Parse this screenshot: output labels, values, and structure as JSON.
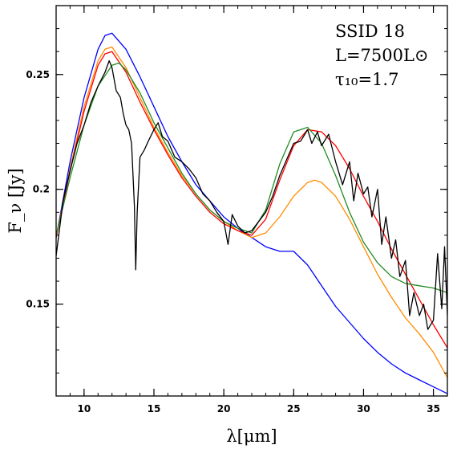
{
  "chart_data": {
    "type": "line",
    "title": "",
    "xlabel": "λ[μm]",
    "ylabel": "F_ν [Jy]",
    "xlim": [
      8,
      36
    ],
    "ylim": [
      0.11,
      0.28
    ],
    "x_ticks": [
      10,
      15,
      20,
      25,
      30,
      35
    ],
    "x_tick_labels": [
      "10",
      "15",
      "20",
      "25",
      "30",
      "35"
    ],
    "y_ticks": [
      0.15,
      0.2,
      0.25
    ],
    "y_tick_labels": [
      "0.15",
      "0.2",
      "0.25"
    ],
    "grid": false,
    "legend": "none",
    "annotation": {
      "line1": "SSID 18",
      "line2": "L=7500L⊙",
      "line3": "τ₁₀=1.7"
    },
    "series": [
      {
        "color": "#0000ff",
        "x": [
          8,
          9,
          10,
          11,
          11.5,
          12,
          13,
          14,
          15,
          16,
          17,
          18,
          19,
          20,
          21,
          22,
          23,
          24,
          25,
          26,
          27,
          28,
          29,
          30,
          31,
          32,
          33,
          34,
          35,
          36
        ],
        "y": [
          0.179,
          0.212,
          0.24,
          0.261,
          0.267,
          0.268,
          0.261,
          0.249,
          0.236,
          0.223,
          0.212,
          0.202,
          0.195,
          0.188,
          0.183,
          0.179,
          0.175,
          0.173,
          0.173,
          0.167,
          0.158,
          0.149,
          0.142,
          0.135,
          0.129,
          0.124,
          0.12,
          0.117,
          0.114,
          0.111
        ]
      },
      {
        "color": "#ff8c00",
        "x": [
          8,
          9,
          10,
          11,
          11.5,
          12,
          13,
          14,
          15,
          16,
          17,
          18,
          19,
          20,
          21,
          22,
          23,
          24,
          25,
          26,
          26.5,
          27,
          28,
          29,
          30,
          31,
          32,
          33,
          34,
          35,
          36
        ],
        "y": [
          0.179,
          0.209,
          0.236,
          0.256,
          0.261,
          0.262,
          0.253,
          0.24,
          0.227,
          0.216,
          0.206,
          0.198,
          0.191,
          0.186,
          0.182,
          0.179,
          0.181,
          0.188,
          0.197,
          0.203,
          0.204,
          0.203,
          0.197,
          0.187,
          0.175,
          0.163,
          0.153,
          0.144,
          0.137,
          0.129,
          0.118
        ]
      },
      {
        "color": "#ff0000",
        "x": [
          8,
          9,
          10,
          11,
          11.5,
          12,
          13,
          14,
          15,
          16,
          17,
          18,
          19,
          20,
          21,
          22,
          23,
          24,
          25,
          26,
          27,
          28,
          29,
          30,
          31,
          32,
          33,
          34,
          35,
          36
        ],
        "y": [
          0.179,
          0.208,
          0.234,
          0.254,
          0.259,
          0.26,
          0.251,
          0.238,
          0.226,
          0.215,
          0.205,
          0.197,
          0.19,
          0.185,
          0.182,
          0.18,
          0.187,
          0.204,
          0.219,
          0.226,
          0.225,
          0.219,
          0.209,
          0.197,
          0.186,
          0.174,
          0.163,
          0.152,
          0.141,
          0.131
        ]
      },
      {
        "color": "#228b22",
        "x": [
          8,
          9,
          10,
          11,
          12,
          12.5,
          13,
          14,
          15,
          16,
          17,
          18,
          19,
          20,
          21,
          22,
          23,
          24,
          25,
          26,
          27,
          28,
          29,
          30,
          31,
          32,
          33,
          34,
          35,
          36
        ],
        "y": [
          0.18,
          0.205,
          0.228,
          0.245,
          0.254,
          0.255,
          0.252,
          0.242,
          0.229,
          0.218,
          0.207,
          0.198,
          0.191,
          0.186,
          0.183,
          0.181,
          0.191,
          0.211,
          0.225,
          0.227,
          0.22,
          0.206,
          0.19,
          0.177,
          0.168,
          0.162,
          0.159,
          0.158,
          0.157,
          0.155
        ]
      },
      {
        "color": "#000000",
        "x": [
          8,
          8.5,
          9,
          9.5,
          10,
          10.5,
          11,
          11.5,
          11.8,
          12,
          12.3,
          12.6,
          12.8,
          13,
          13.2,
          13.4,
          13.6,
          13.7,
          13.8,
          14,
          14.3,
          14.6,
          15,
          15.3,
          15.6,
          16,
          16.5,
          17,
          17.5,
          18,
          18.5,
          19,
          19.5,
          20,
          20.3,
          20.6,
          21,
          21.5,
          22,
          22.5,
          23,
          23.5,
          24,
          24.5,
          25,
          25.5,
          26,
          26.3,
          26.7,
          27,
          27.5,
          28,
          28.5,
          29,
          29.3,
          29.6,
          30,
          30.3,
          30.6,
          31,
          31.3,
          31.6,
          32,
          32.3,
          32.6,
          33,
          33.3,
          33.6,
          34,
          34.3,
          34.6,
          35,
          35.3,
          35.6,
          35.8,
          36
        ],
        "y": [
          0.171,
          0.195,
          0.208,
          0.22,
          0.228,
          0.238,
          0.245,
          0.251,
          0.256,
          0.253,
          0.243,
          0.24,
          0.233,
          0.228,
          0.226,
          0.22,
          0.193,
          0.165,
          0.19,
          0.214,
          0.217,
          0.221,
          0.226,
          0.229,
          0.223,
          0.221,
          0.214,
          0.212,
          0.209,
          0.205,
          0.198,
          0.195,
          0.19,
          0.186,
          0.176,
          0.189,
          0.184,
          0.181,
          0.182,
          0.186,
          0.19,
          0.197,
          0.206,
          0.213,
          0.22,
          0.221,
          0.226,
          0.22,
          0.225,
          0.219,
          0.224,
          0.212,
          0.202,
          0.212,
          0.195,
          0.207,
          0.198,
          0.201,
          0.188,
          0.2,
          0.176,
          0.188,
          0.17,
          0.178,
          0.162,
          0.169,
          0.145,
          0.155,
          0.145,
          0.15,
          0.139,
          0.143,
          0.172,
          0.148,
          0.175,
          0.145
        ]
      }
    ]
  }
}
